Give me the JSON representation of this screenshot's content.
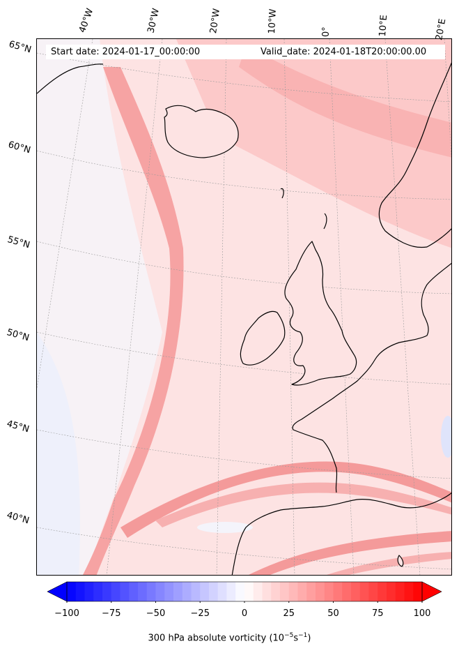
{
  "header": {
    "start_date": "Start date: 2024-01-17_00:00:00",
    "valid_date": "Valid_date: 2024-01-18T20:00:00.00"
  },
  "map": {
    "variable": "300 hPa absolute vorticity",
    "longitude_labels": [
      "40°W",
      "30°W",
      "20°W",
      "10°W",
      "0°",
      "10°E",
      "20°E"
    ],
    "latitude_labels": [
      "65°N",
      "60°N",
      "55°N",
      "50°N",
      "45°N",
      "40°N"
    ],
    "colormap": "bwr",
    "colors": {
      "min": "#0000ff",
      "mid": "#ffffff",
      "max": "#ff0000",
      "coastline": "#000000",
      "background": "#fde4e4"
    }
  },
  "colorbar": {
    "ticks": [
      "−100",
      "−75",
      "−50",
      "−25",
      "0",
      "25",
      "50",
      "75",
      "100"
    ],
    "tick_values": [
      -100,
      -75,
      -50,
      -25,
      0,
      25,
      50,
      75,
      100
    ],
    "range": [
      -100,
      100
    ],
    "label_main": "300 hPa absolute vorticity (10",
    "label_exp1": "−5",
    "label_mid": "s",
    "label_exp2": "−1",
    "label_end": ")"
  }
}
